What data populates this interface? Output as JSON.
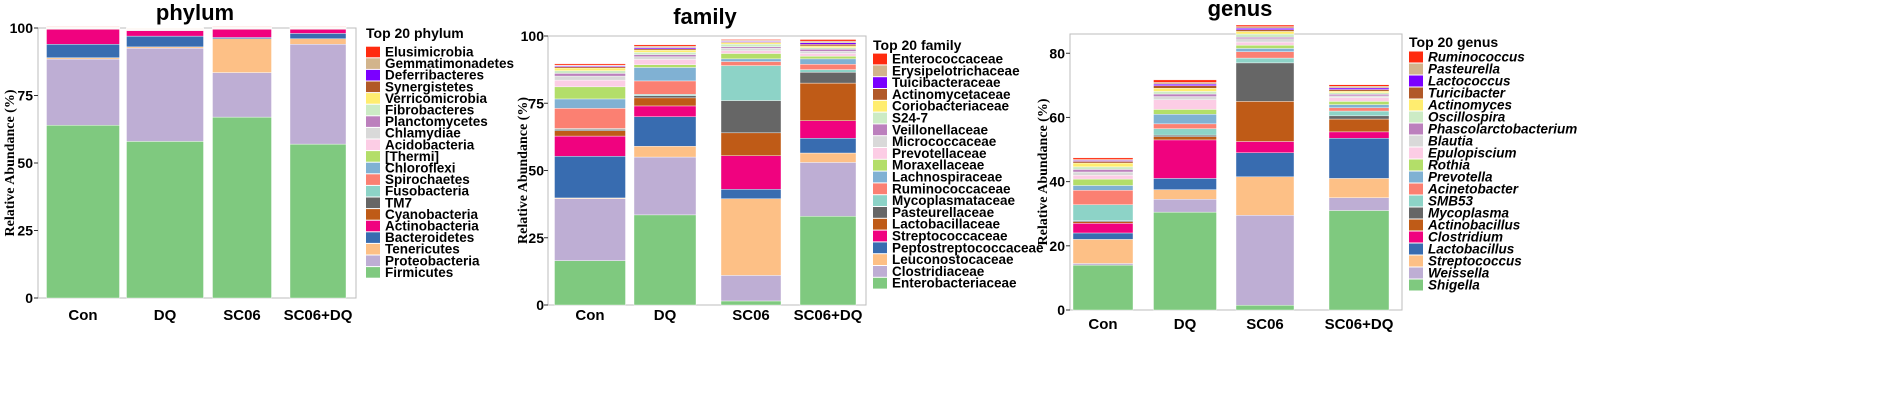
{
  "chart_data": [
    {
      "type": "bar",
      "title": "phylum",
      "ylabel": "Relative Abundance (%)",
      "ylim": [
        0,
        100
      ],
      "yticks": [
        "0",
        "25",
        "50",
        "75",
        "100"
      ],
      "legend_title": "Top 20 phylum",
      "italic": false,
      "categories": [
        "Con",
        "DQ",
        "SC06",
        "SC06+DQ"
      ],
      "series": [
        {
          "name": "Firmicutes",
          "color": "#7fc97f",
          "values": [
            64,
            58,
            67,
            57
          ]
        },
        {
          "name": "Proteobacteria",
          "color": "#beaed4",
          "values": [
            24.5,
            34.5,
            16.5,
            37
          ]
        },
        {
          "name": "Tenericutes",
          "color": "#fdc086",
          "values": [
            0.5,
            0.5,
            12.5,
            2
          ]
        },
        {
          "name": "Bacteroidetes",
          "color": "#386cb0",
          "values": [
            5,
            4,
            0.5,
            2
          ]
        },
        {
          "name": "Actinobacteria",
          "color": "#f0027f",
          "values": [
            5.5,
            2,
            3,
            1.5
          ]
        },
        {
          "name": "Cyanobacteria",
          "color": "#bf5b17",
          "values": [
            0.2,
            0.2,
            0.2,
            0.2
          ]
        },
        {
          "name": "TM7",
          "color": "#666666",
          "values": [
            0.1,
            0.1,
            0.1,
            0.1
          ]
        },
        {
          "name": "Fusobacteria",
          "color": "#8dd3c7",
          "values": [
            0.1,
            0.1,
            0.1,
            0.1
          ]
        },
        {
          "name": "Spirochaetes",
          "color": "#fb8072",
          "values": [
            0.1,
            0.1,
            0.1,
            0.1
          ]
        },
        {
          "name": "Chloroflexi",
          "color": "#80b1d3",
          "values": [
            0.1,
            0.1,
            0.1,
            0.1
          ]
        },
        {
          "name": "[Thermi]",
          "color": "#b3de69",
          "values": [
            0.05,
            0.05,
            0.05,
            0.05
          ]
        },
        {
          "name": "Acidobacteria",
          "color": "#fccde5",
          "values": [
            0.05,
            0.05,
            0.05,
            0.05
          ]
        },
        {
          "name": "Chlamydiae",
          "color": "#d9d9d9",
          "values": [
            0.05,
            0.05,
            0.05,
            0.05
          ]
        },
        {
          "name": "Planctomycetes",
          "color": "#bc80bd",
          "values": [
            0.05,
            0.05,
            0.05,
            0.05
          ]
        },
        {
          "name": "Fibrobacteres",
          "color": "#ccebc5",
          "values": [
            0.05,
            0.05,
            0.05,
            0.05
          ]
        },
        {
          "name": "Verricomicrobia",
          "color": "#ffed6f",
          "values": [
            0.05,
            0.05,
            0.05,
            0.05
          ]
        },
        {
          "name": "Synergistetes",
          "color": "#b15928",
          "values": [
            0.05,
            0.05,
            0.05,
            0.05
          ]
        },
        {
          "name": "Deferribacteres",
          "color": "#7b00ff",
          "values": [
            0.05,
            0.05,
            0.05,
            0.05
          ]
        },
        {
          "name": "Gemmatimonadetes",
          "color": "#d2b48c",
          "values": [
            0.05,
            0.05,
            0.05,
            0.05
          ]
        },
        {
          "name": "Elusimicrobia",
          "color": "#ff2b0f",
          "values": [
            0.05,
            0.05,
            0.05,
            0.05
          ]
        }
      ]
    },
    {
      "type": "bar",
      "title": "family",
      "ylabel": "Relative Abundance (%)",
      "ylim": [
        0,
        100
      ],
      "yticks": [
        "0",
        "25",
        "50",
        "75",
        "100"
      ],
      "legend_title": "Top 20 family",
      "italic": false,
      "categories": [
        "Con",
        "DQ",
        "SC06",
        "SC06+DQ"
      ],
      "series": [
        {
          "name": "Enterobacteriaceae",
          "color": "#7fc97f",
          "values": [
            16.5,
            33.5,
            1.5,
            33
          ]
        },
        {
          "name": "Clostridiaceae",
          "color": "#beaed4",
          "values": [
            23,
            21.5,
            9.5,
            20
          ]
        },
        {
          "name": "Leuconostocaceae",
          "color": "#fdc086",
          "values": [
            0.3,
            4,
            28.5,
            3.5
          ]
        },
        {
          "name": "Peptostreptococcaceae",
          "color": "#386cb0",
          "values": [
            15.5,
            11,
            3.5,
            5.5
          ]
        },
        {
          "name": "Streptococcaceae",
          "color": "#f0027f",
          "values": [
            7.5,
            4,
            12.5,
            6.5
          ]
        },
        {
          "name": "Lactobacillaceae",
          "color": "#bf5b17",
          "values": [
            2,
            3,
            8.5,
            14
          ]
        },
        {
          "name": "Pasteurellaceae",
          "color": "#666666",
          "values": [
            0.5,
            0.8,
            12,
            4
          ]
        },
        {
          "name": "Mycoplasmataceae",
          "color": "#8dd3c7",
          "values": [
            0.3,
            0.5,
            13,
            1
          ]
        },
        {
          "name": "Ruminococcaceae",
          "color": "#fb8072",
          "values": [
            7.5,
            5,
            1.5,
            2
          ]
        },
        {
          "name": "Lachnospiraceae",
          "color": "#80b1d3",
          "values": [
            3.5,
            5,
            1,
            2
          ]
        },
        {
          "name": "Moraxellaceae",
          "color": "#b3de69",
          "values": [
            4.5,
            1,
            2,
            1
          ]
        },
        {
          "name": "Prevotellaceae",
          "color": "#fccde5",
          "values": [
            2.5,
            2,
            1,
            1
          ]
        },
        {
          "name": "Micrococcaceae",
          "color": "#d9d9d9",
          "values": [
            1.5,
            1,
            1,
            0.8
          ]
        },
        {
          "name": "Veillonellaceae",
          "color": "#bc80bd",
          "values": [
            1,
            0.8,
            0.5,
            0.8
          ]
        },
        {
          "name": "S24-7",
          "color": "#ccebc5",
          "values": [
            1,
            0.8,
            1,
            0.6
          ]
        },
        {
          "name": "Coriobacteriaceae",
          "color": "#ffed6f",
          "values": [
            1,
            0.8,
            0.5,
            0.6
          ]
        },
        {
          "name": "Actinomycetaceae",
          "color": "#b15928",
          "values": [
            0.5,
            0.5,
            0.3,
            0.6
          ]
        },
        {
          "name": "Tuicibacteraceae",
          "color": "#7b00ff",
          "values": [
            0.3,
            0.5,
            0.3,
            0.6
          ]
        },
        {
          "name": "Erysipelotrichaceae",
          "color": "#d2b48c",
          "values": [
            0.3,
            0.5,
            0.3,
            0.6
          ]
        },
        {
          "name": "Enterococcaceae",
          "color": "#ff2b0f",
          "values": [
            0.5,
            0.5,
            0.3,
            0.6
          ]
        }
      ]
    },
    {
      "type": "bar",
      "title": "genus",
      "ylabel": "Relative Abundance (%)",
      "ylim": [
        0,
        86
      ],
      "yticks": [
        "0",
        "20",
        "40",
        "60",
        "80"
      ],
      "legend_title": "Top 20 genus",
      "italic": true,
      "categories": [
        "Con",
        "DQ",
        "SC06",
        "SC06+DQ"
      ],
      "series": [
        {
          "name": "Shigella",
          "color": "#7fc97f",
          "values": [
            14,
            30.5,
            1.5,
            31
          ]
        },
        {
          "name": "Weissella",
          "color": "#beaed4",
          "values": [
            0.5,
            4,
            28,
            4
          ]
        },
        {
          "name": "Streptococcus",
          "color": "#fdc086",
          "values": [
            7.5,
            3,
            12,
            6
          ]
        },
        {
          "name": "Lactobacillus",
          "color": "#386cb0",
          "values": [
            2,
            3.5,
            7.5,
            12.5
          ]
        },
        {
          "name": "Clostridium",
          "color": "#f0027f",
          "values": [
            3,
            12,
            3.5,
            2
          ]
        },
        {
          "name": "Actinobacillus",
          "color": "#bf5b17",
          "values": [
            0.5,
            1,
            12.5,
            4
          ]
        },
        {
          "name": "Mycoplasma",
          "color": "#666666",
          "values": [
            0.3,
            0.5,
            12,
            1
          ]
        },
        {
          "name": "SMB53",
          "color": "#8dd3c7",
          "values": [
            5,
            2,
            1.5,
            1.5
          ]
        },
        {
          "name": "Acinetobacter",
          "color": "#fb8072",
          "values": [
            4.5,
            1.5,
            2,
            1
          ]
        },
        {
          "name": "Prevotella",
          "color": "#80b1d3",
          "values": [
            1.5,
            3,
            1,
            1
          ]
        },
        {
          "name": "Rothia",
          "color": "#b3de69",
          "values": [
            2,
            1.5,
            1,
            1
          ]
        },
        {
          "name": "Epulopiscium",
          "color": "#fccde5",
          "values": [
            1.2,
            3,
            1,
            1.2
          ]
        },
        {
          "name": "Blautia",
          "color": "#d9d9d9",
          "values": [
            1,
            1,
            1,
            0.5
          ]
        },
        {
          "name": "Phascolarctobacterium",
          "color": "#bc80bd",
          "values": [
            0.8,
            0.8,
            0.5,
            0.5
          ]
        },
        {
          "name": "Oscillospira",
          "color": "#ccebc5",
          "values": [
            0.8,
            0.8,
            1,
            0.5
          ]
        },
        {
          "name": "Actinomyces",
          "color": "#ffed6f",
          "values": [
            1.2,
            1,
            0.8,
            0.5
          ]
        },
        {
          "name": "Turicibacter",
          "color": "#b15928",
          "values": [
            0.5,
            0.8,
            0.5,
            0.5
          ]
        },
        {
          "name": "Lactococcus",
          "color": "#7b00ff",
          "values": [
            0.3,
            0.5,
            0.5,
            0.5
          ]
        },
        {
          "name": "Pasteurella",
          "color": "#d2b48c",
          "values": [
            0.3,
            0.5,
            0.5,
            0.5
          ]
        },
        {
          "name": "Ruminococcus",
          "color": "#ff2b0f",
          "values": [
            0.5,
            0.8,
            0.5,
            0.5
          ]
        }
      ]
    }
  ]
}
